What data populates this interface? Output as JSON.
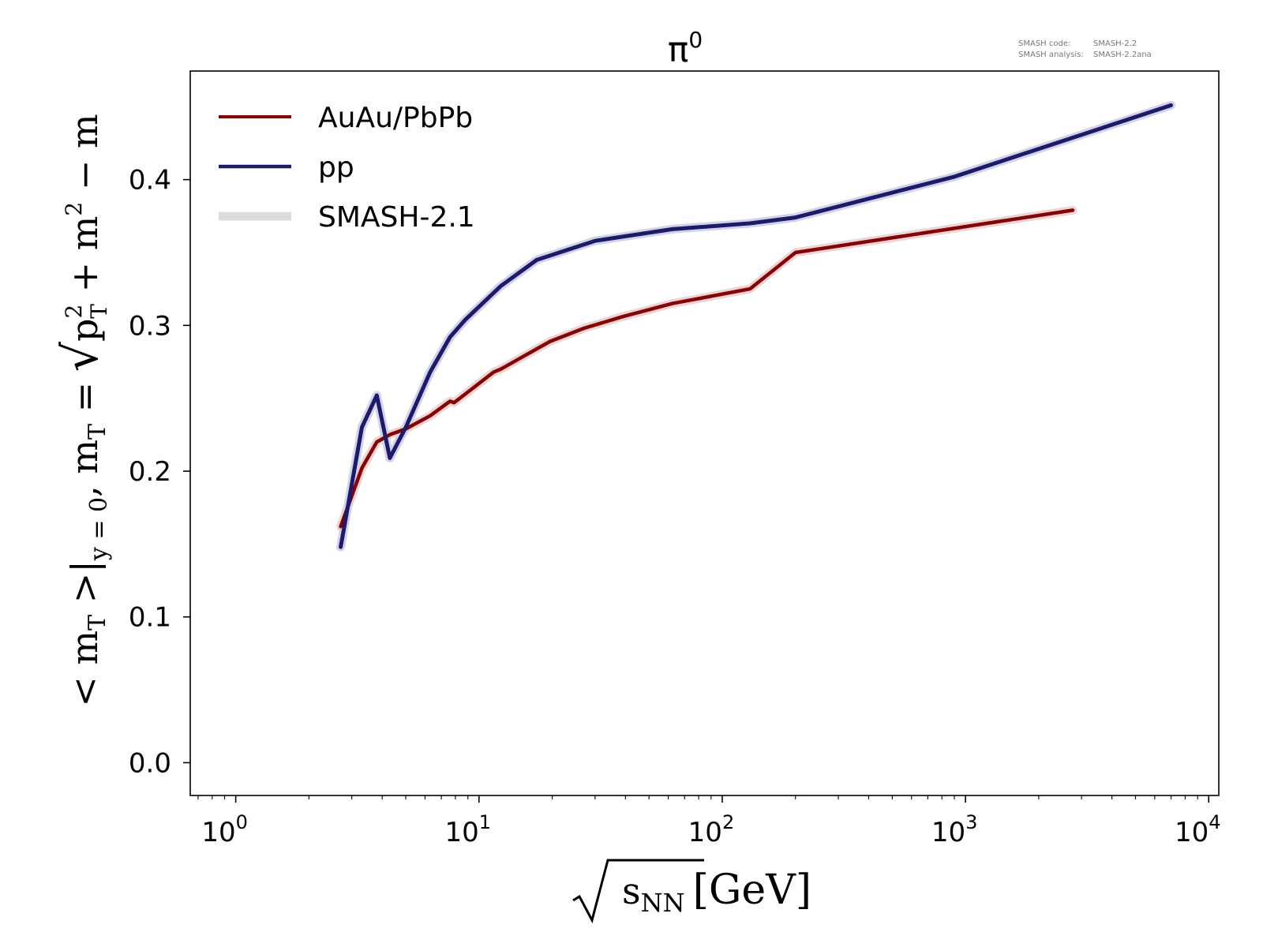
{
  "chart_data": {
    "type": "line",
    "title": "π",
    "title_superscript": "0",
    "xlabel": {
      "radical_text": "s",
      "subscript": "NN",
      "unit": "[GeV]"
    },
    "ylabel": {
      "part1": "< m",
      "part1_sub": "T",
      "part2": " >|",
      "part2_sub": "y = 0",
      "part3": ",  m",
      "part3_sub": "T",
      "part4": " = ",
      "rad_p": "p",
      "rad_p_sup": "2",
      "rad_p_sub": "T",
      "rad_plus": " + m",
      "rad_m_sup": "2",
      "tail": " − m"
    },
    "x_scale": "log",
    "xlim": [
      0.65,
      11000
    ],
    "ylim": [
      -0.0225,
      0.4745
    ],
    "x_ticks": [
      {
        "value": 1,
        "base": "10",
        "exp": "0"
      },
      {
        "value": 10,
        "base": "10",
        "exp": "1"
      },
      {
        "value": 100,
        "base": "10",
        "exp": "2"
      },
      {
        "value": 1000,
        "base": "10",
        "exp": "3"
      },
      {
        "value": 10000,
        "base": "10",
        "exp": "4"
      }
    ],
    "y_ticks": [
      {
        "value": 0.0,
        "label": "0.0"
      },
      {
        "value": 0.1,
        "label": "0.1"
      },
      {
        "value": 0.2,
        "label": "0.2"
      },
      {
        "value": 0.3,
        "label": "0.3"
      },
      {
        "value": 0.4,
        "label": "0.4"
      }
    ],
    "legend_position": "upper-left",
    "grid": false,
    "series": [
      {
        "name": "AuAu/PbPb",
        "color": "#8b0000",
        "x": [
          2.7,
          3.3,
          3.8,
          4.3,
          5.0,
          6.3,
          7.6,
          7.9,
          8.8,
          11.5,
          12.3,
          17.3,
          19.6,
          27,
          39,
          62.4,
          130,
          200,
          2760
        ],
        "y": [
          0.162,
          0.202,
          0.22,
          0.225,
          0.229,
          0.238,
          0.248,
          0.247,
          0.253,
          0.268,
          0.27,
          0.284,
          0.289,
          0.298,
          0.306,
          0.315,
          0.325,
          0.35,
          0.379
        ]
      },
      {
        "name": "pp",
        "color": "#1a1a6e",
        "x": [
          2.7,
          3.3,
          3.8,
          4.3,
          5.0,
          6.3,
          7.6,
          8.8,
          12.3,
          17.3,
          30,
          62.4,
          130,
          200,
          900,
          7000
        ],
        "y": [
          0.148,
          0.23,
          0.252,
          0.209,
          0.23,
          0.268,
          0.292,
          0.304,
          0.327,
          0.345,
          0.358,
          0.366,
          0.37,
          0.374,
          0.402,
          0.451
        ]
      }
    ],
    "band": {
      "name": "SMASH-2.1",
      "color": "#dcdcdc"
    },
    "annotation": {
      "line1_label": "SMASH code:",
      "line1_value": "SMASH-2.2",
      "line2_label": "SMASH analysis:",
      "line2_value": "SMASH-2.2ana"
    }
  }
}
